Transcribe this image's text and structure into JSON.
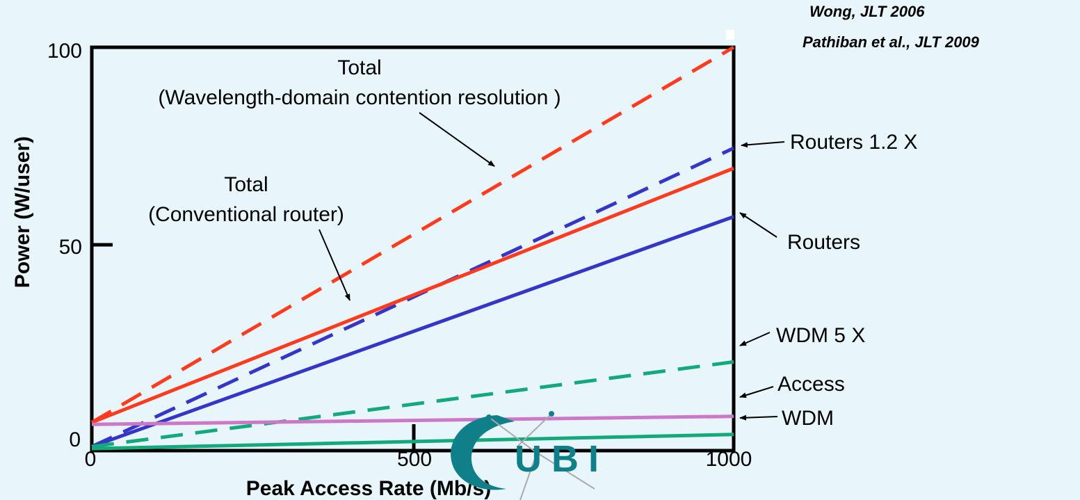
{
  "citations": [
    "Wong, JLT 2006",
    "Pathiban et al., JLT 2009"
  ],
  "logo_text": "UBI",
  "chart_data": {
    "type": "line",
    "xlabel": "Peak Access Rate (Mb/s)",
    "ylabel": "Power (W/user)",
    "xlim": [
      0,
      1000
    ],
    "ylim": [
      0,
      100
    ],
    "x_ticks": [
      "0",
      "500",
      "1000"
    ],
    "y_ticks": [
      "0",
      "50",
      "100"
    ],
    "grid": false,
    "legend": "none",
    "series": [
      {
        "name": "Total (Wavelength-domain contention resolution)",
        "x": [
          0,
          1000
        ],
        "values": [
          7,
          100
        ],
        "color": "#ff3b1f",
        "dashed": true
      },
      {
        "name": "Routers 1.2 X",
        "x": [
          0,
          1000
        ],
        "values": [
          1,
          75
        ],
        "color": "#3535c8",
        "dashed": true
      },
      {
        "name": "Total (Conventional router)",
        "x": [
          0,
          1000
        ],
        "values": [
          7,
          70
        ],
        "color": "#ff3b1f",
        "dashed": false
      },
      {
        "name": "Routers",
        "x": [
          0,
          1000
        ],
        "values": [
          1,
          58
        ],
        "color": "#3535c8",
        "dashed": false
      },
      {
        "name": "WDM 5 X",
        "x": [
          0,
          1000
        ],
        "values": [
          1,
          22
        ],
        "color": "#14a97a",
        "dashed": true
      },
      {
        "name": "Access",
        "x": [
          0,
          1000
        ],
        "values": [
          6.5,
          8.5
        ],
        "color": "#cc77c8",
        "dashed": false
      },
      {
        "name": "WDM",
        "x": [
          0,
          1000
        ],
        "values": [
          0.5,
          4
        ],
        "color": "#14a97a",
        "dashed": false
      }
    ],
    "annotations": {
      "total_wavelength_line1": "Total",
      "total_wavelength_line2": "(Wavelength-domain contention resolution )",
      "total_conv_line1": "Total",
      "total_conv_line2": "(Conventional router)",
      "routers_12x": "Routers 1.2 X",
      "routers": "Routers",
      "wdm_5x": "WDM 5 X",
      "access": "Access",
      "wdm": "WDM"
    }
  }
}
